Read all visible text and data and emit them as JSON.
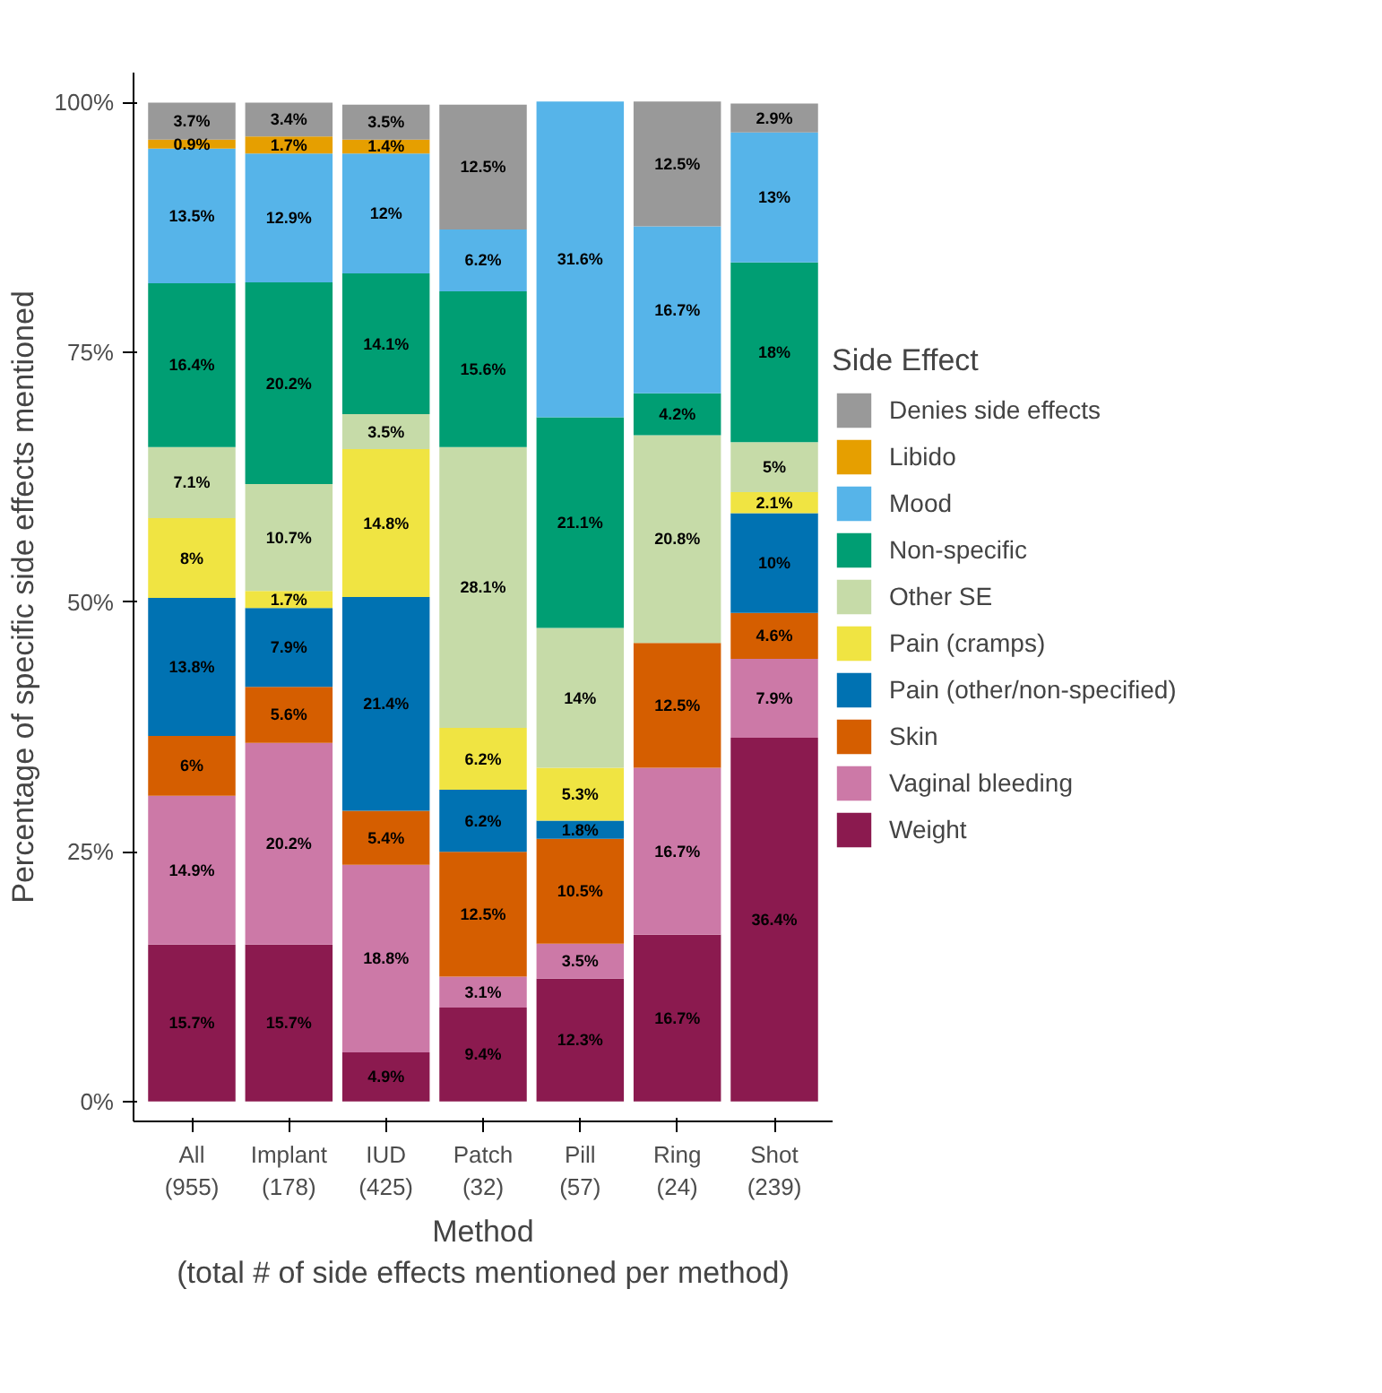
{
  "chart_data": {
    "type": "bar",
    "stacked": true,
    "xlabel": "Method\n(total # of side effects mentioned per method)",
    "ylabel": "Percentage of specific side effects mentioned",
    "legend_title": "Side Effect",
    "categories": [
      "All\n(955)",
      "Implant\n(178)",
      "IUD\n(425)",
      "Patch\n(32)",
      "Pill\n(57)",
      "Ring\n(24)",
      "Shot\n(239)"
    ],
    "ylim": [
      -2,
      103
    ],
    "yticks": [
      {
        "value": 0,
        "label": "0%"
      },
      {
        "value": 25,
        "label": "25%"
      },
      {
        "value": 50,
        "label": "50%"
      },
      {
        "value": 75,
        "label": "75%"
      },
      {
        "value": 100,
        "label": "100%"
      }
    ],
    "grid": false,
    "legend": "right",
    "series": [
      {
        "name": "Weight",
        "color": "#8b1a4f",
        "values": [
          15.7,
          15.7,
          4.9,
          9.4,
          12.3,
          16.7,
          36.4
        ],
        "value_labels": [
          "15.7%",
          "15.7%",
          "4.9%",
          "9.4%",
          "12.3%",
          "16.7%",
          "36.4%"
        ]
      },
      {
        "name": "Vaginal bleeding",
        "color": "#cc79a7",
        "values": [
          14.9,
          20.2,
          18.8,
          3.1,
          3.5,
          16.7,
          7.9
        ],
        "value_labels": [
          "14.9%",
          "20.2%",
          "18.8%",
          "3.1%",
          "3.5%",
          "16.7%",
          "7.9%"
        ]
      },
      {
        "name": "Skin",
        "color": "#d55e00",
        "values": [
          6,
          5.6,
          5.4,
          12.5,
          10.5,
          12.5,
          4.6
        ],
        "value_labels": [
          "6%",
          "5.6%",
          "5.4%",
          "12.5%",
          "10.5%",
          "12.5%",
          "4.6%"
        ]
      },
      {
        "name": "Pain (other/non-specified)",
        "color": "#0072b2",
        "values": [
          13.8,
          7.9,
          21.4,
          6.2,
          1.8,
          null,
          10
        ],
        "value_labels": [
          "13.8%",
          "7.9%",
          "21.4%",
          "6.2%",
          "1.8%",
          null,
          "10%"
        ]
      },
      {
        "name": "Pain (cramps)",
        "color": "#f0e442",
        "values": [
          8,
          1.7,
          14.8,
          6.2,
          5.3,
          null,
          2.1
        ],
        "value_labels": [
          "8%",
          "1.7%",
          "14.8%",
          "6.2%",
          "5.3%",
          null,
          "2.1%"
        ]
      },
      {
        "name": "Other SE",
        "color": "#c6dba8",
        "values": [
          7.1,
          10.7,
          3.5,
          28.1,
          14,
          20.8,
          5
        ],
        "value_labels": [
          "7.1%",
          "10.7%",
          "3.5%",
          "28.1%",
          "14%",
          "20.8%",
          "5%"
        ]
      },
      {
        "name": "Non-specific",
        "color": "#009e73",
        "values": [
          16.4,
          20.2,
          14.1,
          15.6,
          21.1,
          4.2,
          18
        ],
        "value_labels": [
          "16.4%",
          "20.2%",
          "14.1%",
          "15.6%",
          "21.1%",
          "4.2%",
          "18%"
        ]
      },
      {
        "name": "Mood",
        "color": "#56b4e9",
        "values": [
          13.5,
          12.9,
          12,
          6.2,
          31.6,
          16.7,
          13
        ],
        "value_labels": [
          "13.5%",
          "12.9%",
          "12%",
          "6.2%",
          "31.6%",
          "16.7%",
          "13%"
        ]
      },
      {
        "name": "Libido",
        "color": "#e69f00",
        "values": [
          0.9,
          1.7,
          1.4,
          null,
          null,
          null,
          null
        ],
        "value_labels": [
          "0.9%",
          "1.7%",
          "1.4%",
          null,
          null,
          null,
          null
        ]
      },
      {
        "name": "Denies side effects",
        "color": "#999999",
        "values": [
          3.7,
          3.4,
          3.5,
          12.5,
          null,
          12.5,
          2.9
        ],
        "value_labels": [
          "3.7%",
          "3.4%",
          "3.5%",
          "12.5%",
          null,
          "12.5%",
          "2.9%"
        ]
      }
    ]
  }
}
